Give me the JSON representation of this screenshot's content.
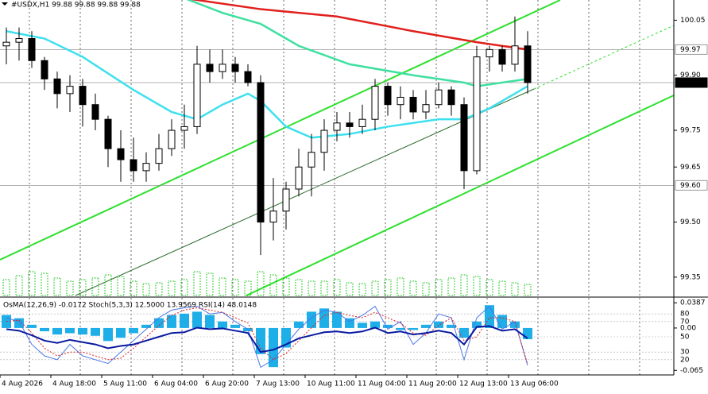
{
  "chart_data": {
    "type": "candlestick",
    "title": "#USDX,H1  99.88 99.88 99.88 99.88",
    "categories": [
      "4 Aug 2026",
      null,
      null,
      null,
      "4 Aug 18:00",
      null,
      null,
      null,
      "5 Aug 11:00",
      null,
      null,
      null,
      "6 Aug 04:00",
      null,
      null,
      null,
      "6 Aug 20:00",
      null,
      null,
      null,
      "7 Aug 13:00",
      null,
      null,
      null,
      "10 Aug 11:00",
      null,
      null,
      null,
      "11 Aug 04:00",
      null,
      null,
      null,
      "11 Aug 20:00",
      null,
      null,
      null,
      "12 Aug 13:00",
      null,
      null,
      null,
      "13 Aug 06:00",
      null
    ],
    "open": [
      99.98,
      99.99,
      100.0,
      99.94,
      99.89,
      99.85,
      99.87,
      99.82,
      99.78,
      99.7,
      99.67,
      99.64,
      99.66,
      99.7,
      99.75,
      99.76,
      99.93,
      99.91,
      99.93,
      99.91,
      99.88,
      99.5,
      99.53,
      99.59,
      99.65,
      99.69,
      99.75,
      99.77,
      99.76,
      99.78,
      99.87,
      99.82,
      99.84,
      99.8,
      99.82,
      99.86,
      99.82,
      99.64,
      99.95,
      99.97,
      99.93,
      99.98
    ],
    "high": [
      100.03,
      100.03,
      100.02,
      99.95,
      99.91,
      99.9,
      99.89,
      99.85,
      99.79,
      99.75,
      99.73,
      99.69,
      99.74,
      99.78,
      99.82,
      99.98,
      99.97,
      99.97,
      99.95,
      99.93,
      99.9,
      99.62,
      99.61,
      99.7,
      99.74,
      99.78,
      99.8,
      99.8,
      99.82,
      99.89,
      99.88,
      99.87,
      99.86,
      99.86,
      99.88,
      99.87,
      99.84,
      99.98,
      99.98,
      99.98,
      100.06,
      100.02
    ],
    "low": [
      99.93,
      99.94,
      99.92,
      99.86,
      99.81,
      99.8,
      99.76,
      99.75,
      99.65,
      99.61,
      99.61,
      99.61,
      99.64,
      99.68,
      99.7,
      99.74,
      99.88,
      99.89,
      99.88,
      99.87,
      99.41,
      99.45,
      99.48,
      99.57,
      99.57,
      99.64,
      99.72,
      99.73,
      99.74,
      99.75,
      99.79,
      99.78,
      99.78,
      99.78,
      99.81,
      99.79,
      99.59,
      99.63,
      99.91,
      99.91,
      99.91,
      99.85
    ],
    "close": [
      99.99,
      100.0,
      99.94,
      99.89,
      99.85,
      99.87,
      99.82,
      99.78,
      99.7,
      99.67,
      99.64,
      99.66,
      99.7,
      99.75,
      99.76,
      99.93,
      99.91,
      99.93,
      99.91,
      99.88,
      99.5,
      99.53,
      99.59,
      99.65,
      99.69,
      99.75,
      99.77,
      99.76,
      99.78,
      99.87,
      99.82,
      99.84,
      99.8,
      99.82,
      99.86,
      99.82,
      99.64,
      99.95,
      99.97,
      99.93,
      99.98,
      99.88
    ],
    "volume": [
      20,
      25,
      30,
      28,
      22,
      18,
      20,
      22,
      26,
      24,
      18,
      15,
      16,
      18,
      20,
      30,
      28,
      22,
      20,
      18,
      30,
      26,
      22,
      20,
      18,
      18,
      20,
      16,
      15,
      18,
      20,
      22,
      18,
      16,
      20,
      22,
      26,
      24,
      20,
      18,
      16,
      14
    ],
    "volume_color": "#00c000",
    "ylim": [
      99.3,
      100.105
    ],
    "yticks": [
      100.05,
      {
        "value": 99.9,
        "label": "99.90"
      },
      99.75,
      99.65,
      {
        "value": 99.5,
        "label": "99.50"
      },
      99.35
    ],
    "moving_averages": [
      {
        "color": "#e0201c",
        "x": [
          14,
          20,
          26,
          32,
          37,
          41
        ],
        "values": [
          100.11,
          100.08,
          100.06,
          100.02,
          99.99,
          99.97
        ]
      },
      {
        "color": "#3ee0a0",
        "x": [
          14,
          17,
          20,
          23,
          27,
          32,
          36,
          37,
          41
        ],
        "values": [
          100.11,
          100.07,
          100.04,
          99.98,
          99.93,
          99.9,
          99.88,
          99.87,
          99.89
        ]
      },
      {
        "color": "#3ee0ee",
        "x": [
          0,
          3,
          6,
          10,
          13,
          15,
          17,
          19,
          20,
          22,
          24,
          27,
          30,
          34,
          36,
          38,
          41
        ],
        "values": [
          100.02,
          100.0,
          99.95,
          99.86,
          99.8,
          99.78,
          99.82,
          99.85,
          99.83,
          99.76,
          99.73,
          99.74,
          99.76,
          99.78,
          99.78,
          99.81,
          99.87
        ]
      }
    ],
    "price_lines": [
      {
        "value": 99.97,
        "style": "plain"
      },
      {
        "value": 99.88,
        "style": "current"
      },
      {
        "value": 99.6,
        "label": "99.60",
        "style": "plain"
      }
    ],
    "indicator": {
      "title": "OsMA(12,26,9) -0.0172  Stoch(5,3,3) 12.5000 13.9569  RSI(14) 48.0148",
      "osma_color": "#1eaee8",
      "osma": [
        0.02,
        0.015,
        0.005,
        -0.005,
        -0.01,
        -0.008,
        -0.01,
        -0.012,
        -0.02,
        -0.015,
        -0.008,
        0.005,
        0.015,
        0.02,
        0.022,
        0.025,
        0.02,
        0.01,
        0.005,
        -0.005,
        -0.04,
        -0.06,
        -0.03,
        0.01,
        0.025,
        0.03,
        0.025,
        0.015,
        0.008,
        0.01,
        0.005,
        -0.003,
        -0.003,
        0.005,
        0.01,
        0.005,
        -0.015,
        0.01,
        0.035,
        0.02,
        0.01,
        -0.0172
      ],
      "osma_ylim": [
        -0.072,
        0.045
      ],
      "osma_ticks": [
        0.0387,
        {
          "value": 0,
          "label": "0.00"
        },
        -0.065
      ],
      "level_ylim": [
        0,
        100
      ],
      "level_ticks": [
        80,
        70,
        50,
        30,
        20
      ],
      "lines": [
        {
          "color": "#4a78e8",
          "dash": "none",
          "width": 1,
          "values": [
            75,
            70,
            40,
            25,
            20,
            40,
            25,
            20,
            15,
            30,
            45,
            60,
            75,
            85,
            88,
            90,
            80,
            82,
            70,
            60,
            10,
            20,
            40,
            60,
            75,
            85,
            82,
            70,
            78,
            90,
            60,
            70,
            40,
            55,
            80,
            75,
            20,
            75,
            90,
            60,
            70,
            12.5
          ]
        },
        {
          "color": "#e02020",
          "dash": "2 2",
          "width": 1,
          "values": [
            70,
            72,
            55,
            35,
            25,
            30,
            30,
            25,
            20,
            22,
            35,
            50,
            65,
            78,
            85,
            88,
            85,
            82,
            75,
            68,
            35,
            20,
            28,
            45,
            62,
            78,
            82,
            78,
            75,
            82,
            75,
            68,
            55,
            52,
            65,
            75,
            45,
            50,
            75,
            75,
            70,
            13.9569
          ]
        },
        {
          "color": "#0a1aa0",
          "dash": "none",
          "width": 2,
          "values": [
            60,
            58,
            52,
            45,
            42,
            46,
            43,
            40,
            35,
            38,
            40,
            45,
            50,
            55,
            56,
            62,
            60,
            61,
            58,
            55,
            30,
            33,
            40,
            48,
            52,
            56,
            57,
            55,
            57,
            62,
            55,
            57,
            53,
            55,
            58,
            55,
            40,
            63,
            64,
            58,
            60,
            48.0148
          ]
        }
      ]
    }
  }
}
